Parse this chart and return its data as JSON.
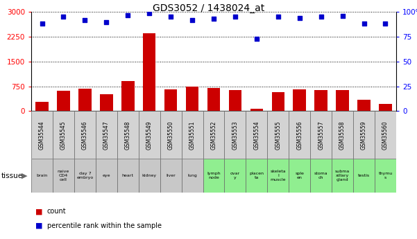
{
  "title": "GDS3052 / 1438024_at",
  "samples": [
    "GSM35544",
    "GSM35545",
    "GSM35546",
    "GSM35547",
    "GSM35548",
    "GSM35549",
    "GSM35550",
    "GSM35551",
    "GSM35552",
    "GSM35553",
    "GSM35554",
    "GSM35555",
    "GSM35556",
    "GSM35557",
    "GSM35558",
    "GSM35559",
    "GSM35560"
  ],
  "tissues": [
    "brain",
    "naive\nCD4\ncell",
    "day 7\nembryо",
    "eye",
    "heart",
    "kidney",
    "liver",
    "lung",
    "lymph\nnode",
    "ovar\ny",
    "placen\nta",
    "skeleta\nl\nmuscle",
    "sple\nen",
    "stoma\nch",
    "subma\nxillary\ngland",
    "testis",
    "thymu\ns"
  ],
  "tissue_colors": [
    "#c8c8c8",
    "#c8c8c8",
    "#c8c8c8",
    "#c8c8c8",
    "#c8c8c8",
    "#c8c8c8",
    "#c8c8c8",
    "#c8c8c8",
    "#90ee90",
    "#90ee90",
    "#90ee90",
    "#90ee90",
    "#90ee90",
    "#90ee90",
    "#90ee90",
    "#90ee90",
    "#90ee90"
  ],
  "counts": [
    280,
    620,
    680,
    520,
    900,
    2350,
    660,
    740,
    700,
    630,
    80,
    580,
    650,
    630,
    640,
    340,
    215
  ],
  "percentiles": [
    88,
    95,
    92,
    90,
    97,
    99,
    95,
    92,
    93,
    95,
    73,
    95,
    94,
    95,
    96,
    88,
    88
  ],
  "bar_color": "#cc0000",
  "dot_color": "#0000cc",
  "ylim_left": [
    0,
    3000
  ],
  "ylim_right": [
    0,
    100
  ],
  "yticks_left": [
    0,
    750,
    1500,
    2250,
    3000
  ],
  "yticks_right": [
    0,
    25,
    50,
    75,
    100
  ],
  "bg_color": "#ffffff"
}
